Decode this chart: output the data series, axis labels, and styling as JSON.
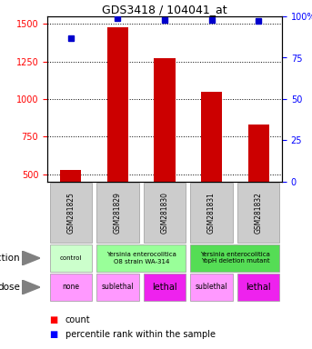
{
  "title": "GDS3418 / 104041_at",
  "samples": [
    "GSM281825",
    "GSM281829",
    "GSM281830",
    "GSM281831",
    "GSM281832"
  ],
  "counts": [
    530,
    1480,
    1270,
    1050,
    830
  ],
  "percentiles": [
    87,
    99,
    98,
    98,
    97
  ],
  "ylim_left": [
    450,
    1550
  ],
  "yticks_left": [
    500,
    750,
    1000,
    1250,
    1500
  ],
  "yticks_right": [
    0,
    25,
    50,
    75,
    100
  ],
  "bar_color": "#cc0000",
  "dot_color": "#0000cc",
  "bar_bottom": 450,
  "sample_bg_color": "#cccccc",
  "infection_data": [
    [
      0,
      1,
      "#ccffcc",
      "control"
    ],
    [
      1,
      3,
      "#99ff99",
      "Yersinia enterocolitica\nO8 strain WA-314"
    ],
    [
      3,
      5,
      "#55dd55",
      "Yersinia enterocolitica\nYopH deletion mutant"
    ]
  ],
  "dose_data": [
    [
      0,
      1,
      "#ff99ff",
      "none"
    ],
    [
      1,
      2,
      "#ff99ff",
      "sublethal"
    ],
    [
      2,
      3,
      "#ee22ee",
      "lethal"
    ],
    [
      3,
      4,
      "#ff99ff",
      "sublethal"
    ],
    [
      4,
      5,
      "#ee22ee",
      "lethal"
    ]
  ]
}
